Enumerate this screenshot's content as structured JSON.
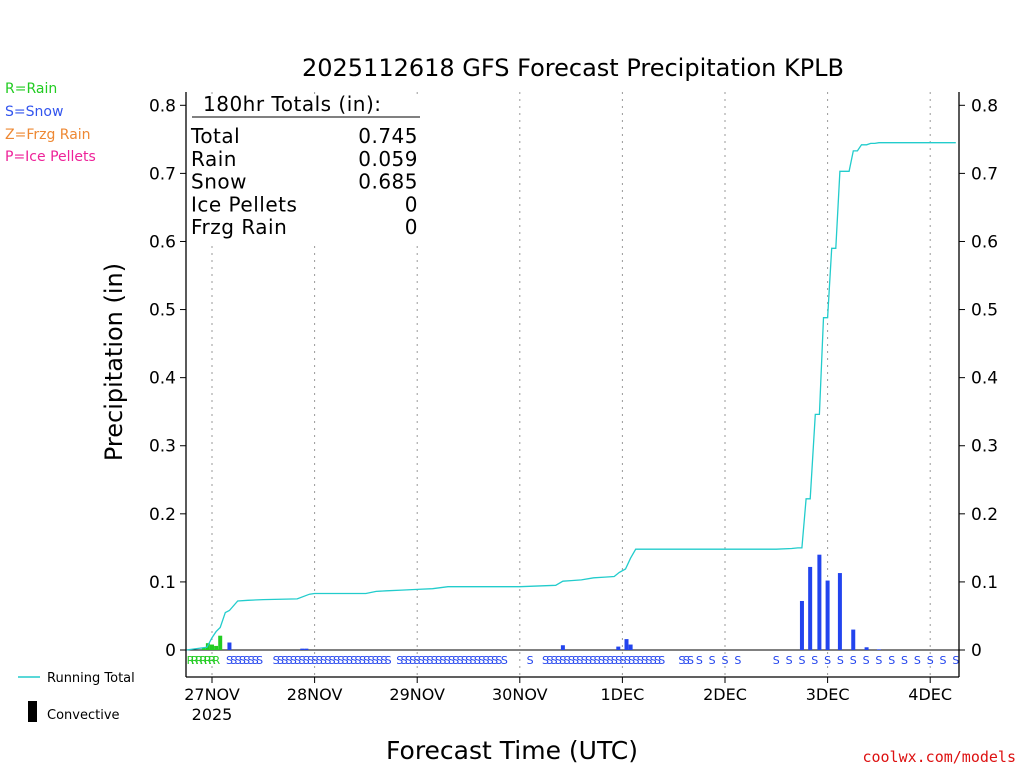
{
  "chart_data": {
    "type": "bar",
    "title": "2025112618 GFS Forecast Precipitation KPLB",
    "xlabel": "Forecast Time (UTC)",
    "ylabel": "Precipitation (in)",
    "ylim": [
      0,
      0.82
    ],
    "yticks": [
      "0",
      "0.1",
      "0.2",
      "0.3",
      "0.4",
      "0.5",
      "0.6",
      "0.7",
      "0.8"
    ],
    "x_unit": "days since 27NOV 00Z",
    "xlim": [
      -0.25,
      7.25
    ],
    "xticks": [
      {
        "x": 0,
        "label": "27NOV",
        "sub": "2025"
      },
      {
        "x": 1,
        "label": "28NOV",
        "sub": ""
      },
      {
        "x": 2,
        "label": "29NOV",
        "sub": ""
      },
      {
        "x": 3,
        "label": "30NOV",
        "sub": ""
      },
      {
        "x": 4,
        "label": "1DEC",
        "sub": ""
      },
      {
        "x": 5,
        "label": "2DEC",
        "sub": ""
      },
      {
        "x": 6,
        "label": "3DEC",
        "sub": ""
      },
      {
        "x": 7,
        "label": "4DEC",
        "sub": ""
      }
    ],
    "legend_types": [
      {
        "text": "R=Rain",
        "color": "#22cc22"
      },
      {
        "text": "S=Snow",
        "color": "#3355ee"
      },
      {
        "text": "Z=Frzg Rain",
        "color": "#ee8833"
      },
      {
        "text": "P=Ice Pellets",
        "color": "#ee2299"
      }
    ],
    "legend_bottom": {
      "running_total": "Running Total",
      "convective": "Convective"
    },
    "totals_box": {
      "heading": "180hr Totals (in):",
      "rows": [
        {
          "label": "Total",
          "value": "0.745"
        },
        {
          "label": "Rain",
          "value": "0.059"
        },
        {
          "label": "Snow",
          "value": "0.685"
        },
        {
          "label": "Ice Pellets",
          "value": "0"
        },
        {
          "label": "Frzg Rain",
          "value": "0"
        }
      ]
    },
    "colors": {
      "rain": "#22cc22",
      "snow": "#2244ee",
      "running_total": "#22cccc"
    },
    "series": [
      {
        "name": "Rain bars",
        "type": "bar",
        "color": "#22cc22",
        "x": [
          -0.08,
          -0.04,
          0.0,
          0.04,
          0.08
        ],
        "values": [
          0.003,
          0.01,
          0.008,
          0.006,
          0.021
        ]
      },
      {
        "name": "Snow bars",
        "type": "bar",
        "color": "#2244ee",
        "x": [
          0.17,
          0.88,
          0.92,
          3.42,
          3.96,
          4.04,
          4.08,
          5.75,
          5.83,
          5.92,
          6.0,
          6.12,
          6.25,
          6.38,
          6.5
        ],
        "values": [
          0.011,
          0.002,
          0.002,
          0.007,
          0.005,
          0.016,
          0.008,
          0.072,
          0.122,
          0.14,
          0.102,
          0.113,
          0.03,
          0.004,
          0.001
        ]
      },
      {
        "name": "Running Total",
        "type": "line",
        "color": "#22cccc",
        "x": [
          -0.25,
          -0.05,
          0.0,
          0.04,
          0.08,
          0.13,
          0.17,
          0.25,
          0.35,
          0.5,
          0.83,
          0.95,
          1.0,
          1.25,
          1.5,
          1.6,
          1.7,
          1.85,
          2.0,
          2.15,
          2.3,
          2.5,
          3.0,
          3.35,
          3.42,
          3.5,
          3.6,
          3.72,
          3.83,
          3.92,
          3.97,
          4.03,
          4.08,
          4.13,
          4.5,
          5.0,
          5.5,
          5.65,
          5.71,
          5.75,
          5.79,
          5.83,
          5.88,
          5.92,
          5.96,
          6.0,
          6.04,
          6.08,
          6.12,
          6.17,
          6.21,
          6.25,
          6.29,
          6.33,
          6.38,
          6.42,
          6.46,
          6.5,
          6.6,
          7.0,
          7.25
        ],
        "values": [
          0,
          0.004,
          0.018,
          0.027,
          0.033,
          0.055,
          0.058,
          0.072,
          0.073,
          0.074,
          0.075,
          0.082,
          0.083,
          0.083,
          0.083,
          0.086,
          0.087,
          0.088,
          0.089,
          0.09,
          0.093,
          0.093,
          0.093,
          0.095,
          0.101,
          0.102,
          0.103,
          0.106,
          0.107,
          0.108,
          0.114,
          0.119,
          0.135,
          0.148,
          0.148,
          0.148,
          0.148,
          0.149,
          0.15,
          0.15,
          0.222,
          0.222,
          0.346,
          0.346,
          0.488,
          0.488,
          0.59,
          0.59,
          0.703,
          0.703,
          0.703,
          0.733,
          0.733,
          0.742,
          0.742,
          0.744,
          0.744,
          0.745,
          0.745,
          0.745,
          0.745
        ]
      }
    ],
    "precip_type_markers": [
      {
        "letter": "R",
        "color": "#22cc22",
        "from": -0.21,
        "to": 0.08,
        "step": 0.042
      },
      {
        "letter": "S",
        "color": "#2244ee",
        "from": 0.17,
        "to": 0.5,
        "step": 0.042
      },
      {
        "letter": "S",
        "color": "#2244ee",
        "from": 0.625,
        "to": 1.75,
        "step": 0.042
      },
      {
        "letter": "S",
        "color": "#2244ee",
        "from": 1.83,
        "to": 2.83,
        "step": 0.042
      },
      {
        "letter": "S",
        "color": "#2244ee",
        "from": 2.85,
        "to": 2.85,
        "step": 0.1
      },
      {
        "letter": "S",
        "color": "#2244ee",
        "from": 3.1,
        "to": 3.1,
        "step": 0.1
      },
      {
        "letter": "S",
        "color": "#2244ee",
        "from": 3.25,
        "to": 4.42,
        "step": 0.042
      },
      {
        "letter": "S",
        "color": "#2244ee",
        "from": 4.58,
        "to": 4.68,
        "step": 0.042
      },
      {
        "letter": "S",
        "color": "#2244ee",
        "from": 4.75,
        "to": 5.17,
        "step": 0.125
      },
      {
        "letter": "S",
        "color": "#2244ee",
        "from": 5.5,
        "to": 7.25,
        "step": 0.125
      }
    ],
    "credit": "coolwx.com/models"
  }
}
